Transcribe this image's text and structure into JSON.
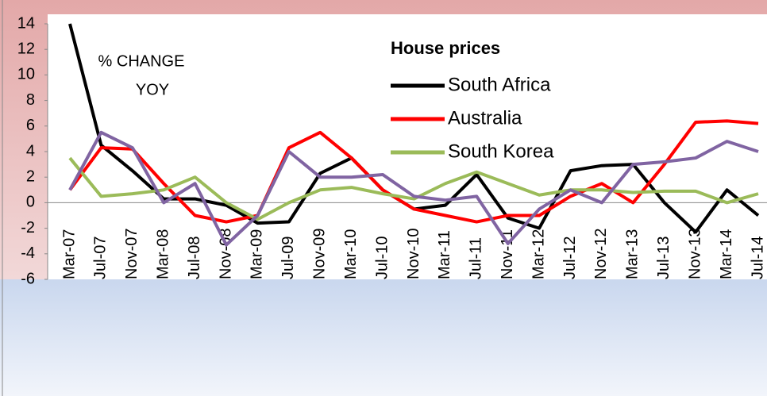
{
  "chart_data": {
    "type": "line",
    "annotation": [
      "% CHANGE",
      "YOY"
    ],
    "legend_title": "House prices",
    "categories": [
      "Mar-07",
      "Jul-07",
      "Nov-07",
      "Mar-08",
      "Jul-08",
      "Nov-08",
      "Mar-09",
      "Jul-09",
      "Nov-09",
      "Mar-10",
      "Jul-10",
      "Nov-10",
      "Mar-11",
      "Jul-11",
      "Nov-11",
      "Mar-12",
      "Jul-12",
      "Nov-12",
      "Mar-13",
      "Jul-13",
      "Nov-13",
      "Mar-14",
      "Jul-14"
    ],
    "series": [
      {
        "name": "South Africa",
        "color": "#000000",
        "values": [
          14,
          4.5,
          2.5,
          0.3,
          0.3,
          -0.2,
          -1.6,
          -1.5,
          2.3,
          3.5,
          1,
          -0.5,
          -0.2,
          2.2,
          -1.2,
          -2,
          2.5,
          2.9,
          3,
          0,
          -2.3,
          1,
          -1
        ]
      },
      {
        "name": "Australia",
        "color": "#ff0000",
        "values": [
          1,
          4.3,
          4.2,
          1.5,
          -1,
          -1.5,
          -1,
          4.3,
          5.5,
          3.5,
          1,
          -0.5,
          -1,
          -1.5,
          -1,
          -1,
          0.5,
          1.5,
          0,
          3,
          6.3,
          6.4,
          6.2
        ]
      },
      {
        "name": "South Korea",
        "color": "#9bbb59",
        "values": [
          3.5,
          0.5,
          0.7,
          1,
          2,
          0,
          -1.3,
          0,
          1,
          1.2,
          0.7,
          0.3,
          1.5,
          2.4,
          1.5,
          0.6,
          1,
          1,
          0.8,
          0.9,
          0.9,
          0,
          0.7
        ]
      },
      {
        "color": "#8064a2",
        "values": [
          1,
          5.5,
          4.3,
          0,
          1.5,
          -3.3,
          -1,
          4,
          2,
          2,
          2.2,
          0.5,
          0.2,
          0.5,
          -3.2,
          -0.5,
          1,
          0,
          3,
          3.2,
          3.5,
          4.8,
          4
        ]
      }
    ],
    "ylim": [
      -6,
      14
    ],
    "yticks": [
      -6,
      -4,
      -2,
      0,
      2,
      4,
      6,
      8,
      10,
      12,
      14
    ],
    "grid": false
  }
}
